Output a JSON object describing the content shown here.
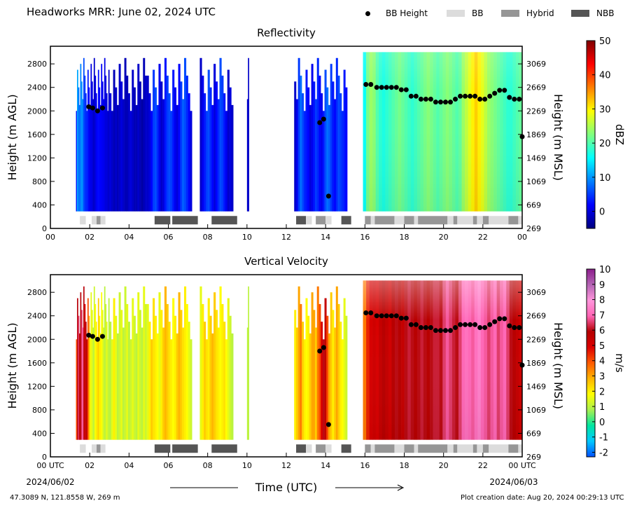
{
  "header": {
    "title": "Headworks MRR:  June 02, 2024 UTC",
    "legend": [
      {
        "label": "BB Height",
        "kind": "dot",
        "color": "#000000"
      },
      {
        "label": "BB",
        "kind": "box",
        "color": "#dcdcdc"
      },
      {
        "label": "Hybrid",
        "kind": "box",
        "color": "#969696"
      },
      {
        "label": "NBB",
        "kind": "box",
        "color": "#555555"
      }
    ]
  },
  "footer": {
    "location": "47.3089 N, 121.8558 W, 269 m",
    "creation": "Plot creation date: Aug 20, 2024 00:29:13 UTC",
    "xlabel": "Time (UTC)",
    "start_tick": "00 UTC",
    "start_date": "2024/06/02",
    "end_tick": "00 UTC",
    "end_date": "2024/06/03"
  },
  "chart_data": [
    {
      "type": "heatmap",
      "title": "Reflectivity",
      "ylabel": "Height (m AGL)",
      "ylabel_right": "Height (m MSL)",
      "xlim": [
        0,
        24
      ],
      "ylim": [
        0,
        3100
      ],
      "x_ticks": [
        "00",
        "02",
        "04",
        "06",
        "08",
        "10",
        "12",
        "14",
        "16",
        "18",
        "20",
        "22",
        "00"
      ],
      "y_ticks": [
        0,
        400,
        800,
        1200,
        1600,
        2000,
        2400,
        2800
      ],
      "y_ticks_right": [
        269,
        669,
        1069,
        1469,
        1869,
        2269,
        2669,
        3069
      ],
      "colorbar": {
        "label": "dBZ",
        "ticks": [
          0,
          10,
          20,
          30,
          40,
          50
        ],
        "range": [
          -5,
          50
        ],
        "colors": [
          "#00007f",
          "#0000ff",
          "#007fff",
          "#00ffff",
          "#7fff7f",
          "#ffff00",
          "#ff7f00",
          "#ff0000",
          "#7f0000"
        ]
      },
      "precip_segments": [
        {
          "start": 1.3,
          "end": 3.0,
          "values": [
            3.5,
            11,
            8,
            8,
            9,
            10,
            9,
            6,
            5,
            4,
            4,
            3,
            1.5,
            1,
            0.5,
            0.5,
            -1,
            -1,
            0.2,
            1,
            2,
            2.5,
            2,
            1.8,
            1.5,
            1.2,
            1,
            0.5,
            0,
            0,
            -0.5,
            -1
          ]
        },
        {
          "start": 3.0,
          "end": 4.9,
          "values": [
            0,
            -1,
            -2,
            -1,
            -2,
            -1,
            0,
            -1,
            -2,
            -2,
            -1,
            0,
            -1,
            -2,
            -2,
            -1,
            -2,
            -3,
            -2,
            -1
          ]
        },
        {
          "start": 4.9,
          "end": 7.2,
          "values": [
            -1,
            0,
            2,
            5,
            6,
            4,
            1,
            -1,
            0,
            3,
            5,
            6,
            5,
            3,
            1,
            0,
            2,
            5,
            7,
            6,
            4,
            2,
            0
          ]
        },
        {
          "start": 7.6,
          "end": 9.3,
          "values": [
            -1,
            1,
            3,
            5,
            6,
            4,
            2,
            0,
            2,
            4,
            6,
            5,
            3,
            1,
            -1,
            0,
            -1
          ]
        },
        {
          "start": 10.0,
          "end": 10.1,
          "values": [
            -1,
            -1
          ]
        },
        {
          "start": 12.4,
          "end": 15.1,
          "values": [
            -1,
            1,
            5,
            8,
            6,
            4,
            3,
            2,
            0,
            1,
            3,
            5,
            4,
            2,
            1,
            3,
            6,
            8,
            7,
            5,
            3,
            2,
            4,
            6,
            5,
            4,
            3,
            2
          ]
        },
        {
          "start": 15.9,
          "end": 24.0,
          "values": [
            16,
            22,
            24,
            23,
            20,
            18,
            17,
            18,
            19,
            20,
            21,
            22,
            21,
            20,
            19,
            18,
            19,
            20,
            21,
            22,
            23,
            22,
            21,
            20,
            21,
            22,
            23,
            22,
            21,
            20,
            21,
            24,
            26,
            28,
            30,
            32,
            30,
            28,
            26,
            24,
            23,
            22,
            21,
            20,
            19,
            18,
            18,
            19,
            20,
            21
          ]
        }
      ]
    },
    {
      "type": "heatmap",
      "title": "Vertical Velocity",
      "ylabel": "Height (m AGL)",
      "ylabel_right": "Height (m MSL)",
      "xlim": [
        0,
        24
      ],
      "ylim": [
        0,
        3100
      ],
      "x_ticks": [
        "00 UTC",
        "02",
        "04",
        "06",
        "08",
        "10",
        "12",
        "14",
        "16",
        "18",
        "20",
        "22",
        "00 UTC"
      ],
      "y_ticks": [
        0,
        400,
        800,
        1200,
        1600,
        2000,
        2400,
        2800
      ],
      "y_ticks_right": [
        269,
        669,
        1069,
        1469,
        1869,
        2269,
        2669,
        3069
      ],
      "colorbar": {
        "label": "m/s",
        "ticks": [
          -2,
          -1,
          0,
          1,
          2,
          3,
          4,
          5,
          6,
          7,
          8,
          9,
          10
        ],
        "range": [
          -2.3,
          10
        ],
        "colors": [
          "#0050ff",
          "#00c8ff",
          "#00e6a0",
          "#a8f050",
          "#ffff00",
          "#ffb400",
          "#ff5a00",
          "#dc0000",
          "#b40000",
          "#ff64b4",
          "#ff96dc",
          "#b464b4",
          "#8c1e8c"
        ]
      },
      "precip_segments": [
        {
          "start": 1.3,
          "end": 3.0,
          "values": [
            4,
            6,
            6.5,
            5.5,
            6,
            6.5,
            7,
            6,
            5,
            6,
            5.5,
            4,
            3,
            2,
            1.5,
            1.5,
            1,
            1.2,
            1.8,
            2,
            2.2,
            2.5,
            2,
            2,
            1.8,
            1.5,
            1.2,
            1,
            1.2,
            1.5,
            1.2,
            1
          ]
        },
        {
          "start": 3.0,
          "end": 4.9,
          "values": [
            1,
            1.5,
            2,
            1.5,
            1,
            1.2,
            1.5,
            1,
            1.2,
            1.5,
            1,
            1.2,
            1.5,
            1.2,
            1,
            1.5,
            1.2,
            1,
            1.5,
            1.2
          ]
        },
        {
          "start": 4.9,
          "end": 7.2,
          "values": [
            1.5,
            2,
            2.5,
            2.2,
            2,
            1.8,
            1.5,
            2,
            2.5,
            2.8,
            2.5,
            2.2,
            2,
            1.8,
            2,
            2.5,
            2.8,
            2.5,
            2.2,
            2,
            1.8,
            1.5,
            1.2
          ]
        },
        {
          "start": 7.6,
          "end": 9.3,
          "values": [
            1.5,
            2,
            2.5,
            2.2,
            2,
            2.5,
            2.8,
            2.5,
            2.2,
            2,
            1.8,
            2,
            2.2,
            1.8,
            1.5,
            1.2,
            1
          ]
        },
        {
          "start": 10.0,
          "end": 10.1,
          "values": [
            1,
            1
          ]
        },
        {
          "start": 12.4,
          "end": 15.1,
          "values": [
            2,
            2.5,
            3,
            3.5,
            2.5,
            2,
            1.8,
            2,
            2.5,
            3,
            3,
            2.5,
            3.5,
            4,
            5,
            6,
            5.5,
            4,
            3,
            2.5,
            2,
            2.5,
            3,
            2.5,
            2,
            1.8,
            1.5,
            1.2
          ]
        },
        {
          "start": 15.9,
          "end": 24.0,
          "values": [
            3.5,
            4.5,
            5,
            5.2,
            5,
            5.5,
            5.8,
            5.5,
            5.2,
            5.8,
            6,
            5.8,
            5.5,
            6,
            6.2,
            6,
            5.8,
            6,
            6.2,
            6,
            5.8,
            6,
            6.2,
            6.2,
            6,
            6.5,
            6.8,
            6.5,
            6.2,
            6,
            6.5,
            7,
            7.2,
            7,
            6.8,
            7.2,
            7.5,
            7,
            6.8,
            6.5,
            6.8,
            7,
            6.5,
            6.8,
            7,
            6.5,
            6,
            5.8,
            5.5,
            5.2
          ]
        }
      ]
    }
  ],
  "bright_band": {
    "heights": [
      {
        "t": 1.95,
        "h": 2070
      },
      {
        "t": 2.15,
        "h": 2050
      },
      {
        "t": 2.4,
        "h": 2000
      },
      {
        "t": 2.65,
        "h": 2050
      },
      {
        "t": 13.7,
        "h": 1800
      },
      {
        "t": 13.9,
        "h": 1860
      },
      {
        "t": 14.15,
        "h": 550
      },
      {
        "t": 16.05,
        "h": 2450
      },
      {
        "t": 16.3,
        "h": 2450
      },
      {
        "t": 16.6,
        "h": 2400
      },
      {
        "t": 16.85,
        "h": 2400
      },
      {
        "t": 17.1,
        "h": 2400
      },
      {
        "t": 17.35,
        "h": 2400
      },
      {
        "t": 17.6,
        "h": 2400
      },
      {
        "t": 17.85,
        "h": 2360
      },
      {
        "t": 18.1,
        "h": 2360
      },
      {
        "t": 18.35,
        "h": 2250
      },
      {
        "t": 18.6,
        "h": 2250
      },
      {
        "t": 18.85,
        "h": 2200
      },
      {
        "t": 19.1,
        "h": 2200
      },
      {
        "t": 19.35,
        "h": 2200
      },
      {
        "t": 19.6,
        "h": 2150
      },
      {
        "t": 19.85,
        "h": 2150
      },
      {
        "t": 20.1,
        "h": 2150
      },
      {
        "t": 20.35,
        "h": 2150
      },
      {
        "t": 20.6,
        "h": 2200
      },
      {
        "t": 20.85,
        "h": 2250
      },
      {
        "t": 21.1,
        "h": 2250
      },
      {
        "t": 21.35,
        "h": 2250
      },
      {
        "t": 21.6,
        "h": 2250
      },
      {
        "t": 21.85,
        "h": 2200
      },
      {
        "t": 22.1,
        "h": 2200
      },
      {
        "t": 22.35,
        "h": 2250
      },
      {
        "t": 22.6,
        "h": 2300
      },
      {
        "t": 22.85,
        "h": 2350
      },
      {
        "t": 23.1,
        "h": 2350
      },
      {
        "t": 23.35,
        "h": 2230
      },
      {
        "t": 23.6,
        "h": 2200
      },
      {
        "t": 23.85,
        "h": 2200
      },
      {
        "t": 24.0,
        "h": 1560
      }
    ],
    "classes": [
      {
        "start": 1.5,
        "end": 1.8,
        "cls": "BB"
      },
      {
        "start": 2.1,
        "end": 2.35,
        "cls": "BB"
      },
      {
        "start": 2.35,
        "end": 2.55,
        "cls": "Hybrid"
      },
      {
        "start": 2.55,
        "end": 2.8,
        "cls": "BB"
      },
      {
        "start": 5.3,
        "end": 6.1,
        "cls": "NBB"
      },
      {
        "start": 6.2,
        "end": 7.5,
        "cls": "NBB"
      },
      {
        "start": 8.2,
        "end": 9.5,
        "cls": "NBB"
      },
      {
        "start": 12.5,
        "end": 13.0,
        "cls": "NBB"
      },
      {
        "start": 13.0,
        "end": 13.3,
        "cls": "BB"
      },
      {
        "start": 13.5,
        "end": 14.0,
        "cls": "Hybrid"
      },
      {
        "start": 14.0,
        "end": 14.3,
        "cls": "BB"
      },
      {
        "start": 14.8,
        "end": 15.3,
        "cls": "NBB"
      },
      {
        "start": 16.0,
        "end": 16.3,
        "cls": "Hybrid"
      },
      {
        "start": 16.3,
        "end": 16.5,
        "cls": "BB"
      },
      {
        "start": 16.5,
        "end": 17.5,
        "cls": "Hybrid"
      },
      {
        "start": 17.5,
        "end": 18.0,
        "cls": "BB"
      },
      {
        "start": 18.0,
        "end": 18.5,
        "cls": "Hybrid"
      },
      {
        "start": 18.5,
        "end": 18.7,
        "cls": "BB"
      },
      {
        "start": 18.7,
        "end": 20.2,
        "cls": "Hybrid"
      },
      {
        "start": 20.2,
        "end": 20.5,
        "cls": "BB"
      },
      {
        "start": 20.5,
        "end": 20.7,
        "cls": "Hybrid"
      },
      {
        "start": 20.7,
        "end": 21.5,
        "cls": "BB"
      },
      {
        "start": 21.5,
        "end": 21.7,
        "cls": "Hybrid"
      },
      {
        "start": 21.7,
        "end": 22.0,
        "cls": "BB"
      },
      {
        "start": 22.0,
        "end": 22.3,
        "cls": "Hybrid"
      },
      {
        "start": 22.3,
        "end": 23.3,
        "cls": "BB"
      },
      {
        "start": 23.3,
        "end": 23.8,
        "cls": "Hybrid"
      },
      {
        "start": 23.8,
        "end": 24.0,
        "cls": "BB"
      }
    ],
    "class_colors": {
      "BB": "#dcdcdc",
      "Hybrid": "#969696",
      "NBB": "#555555"
    }
  }
}
